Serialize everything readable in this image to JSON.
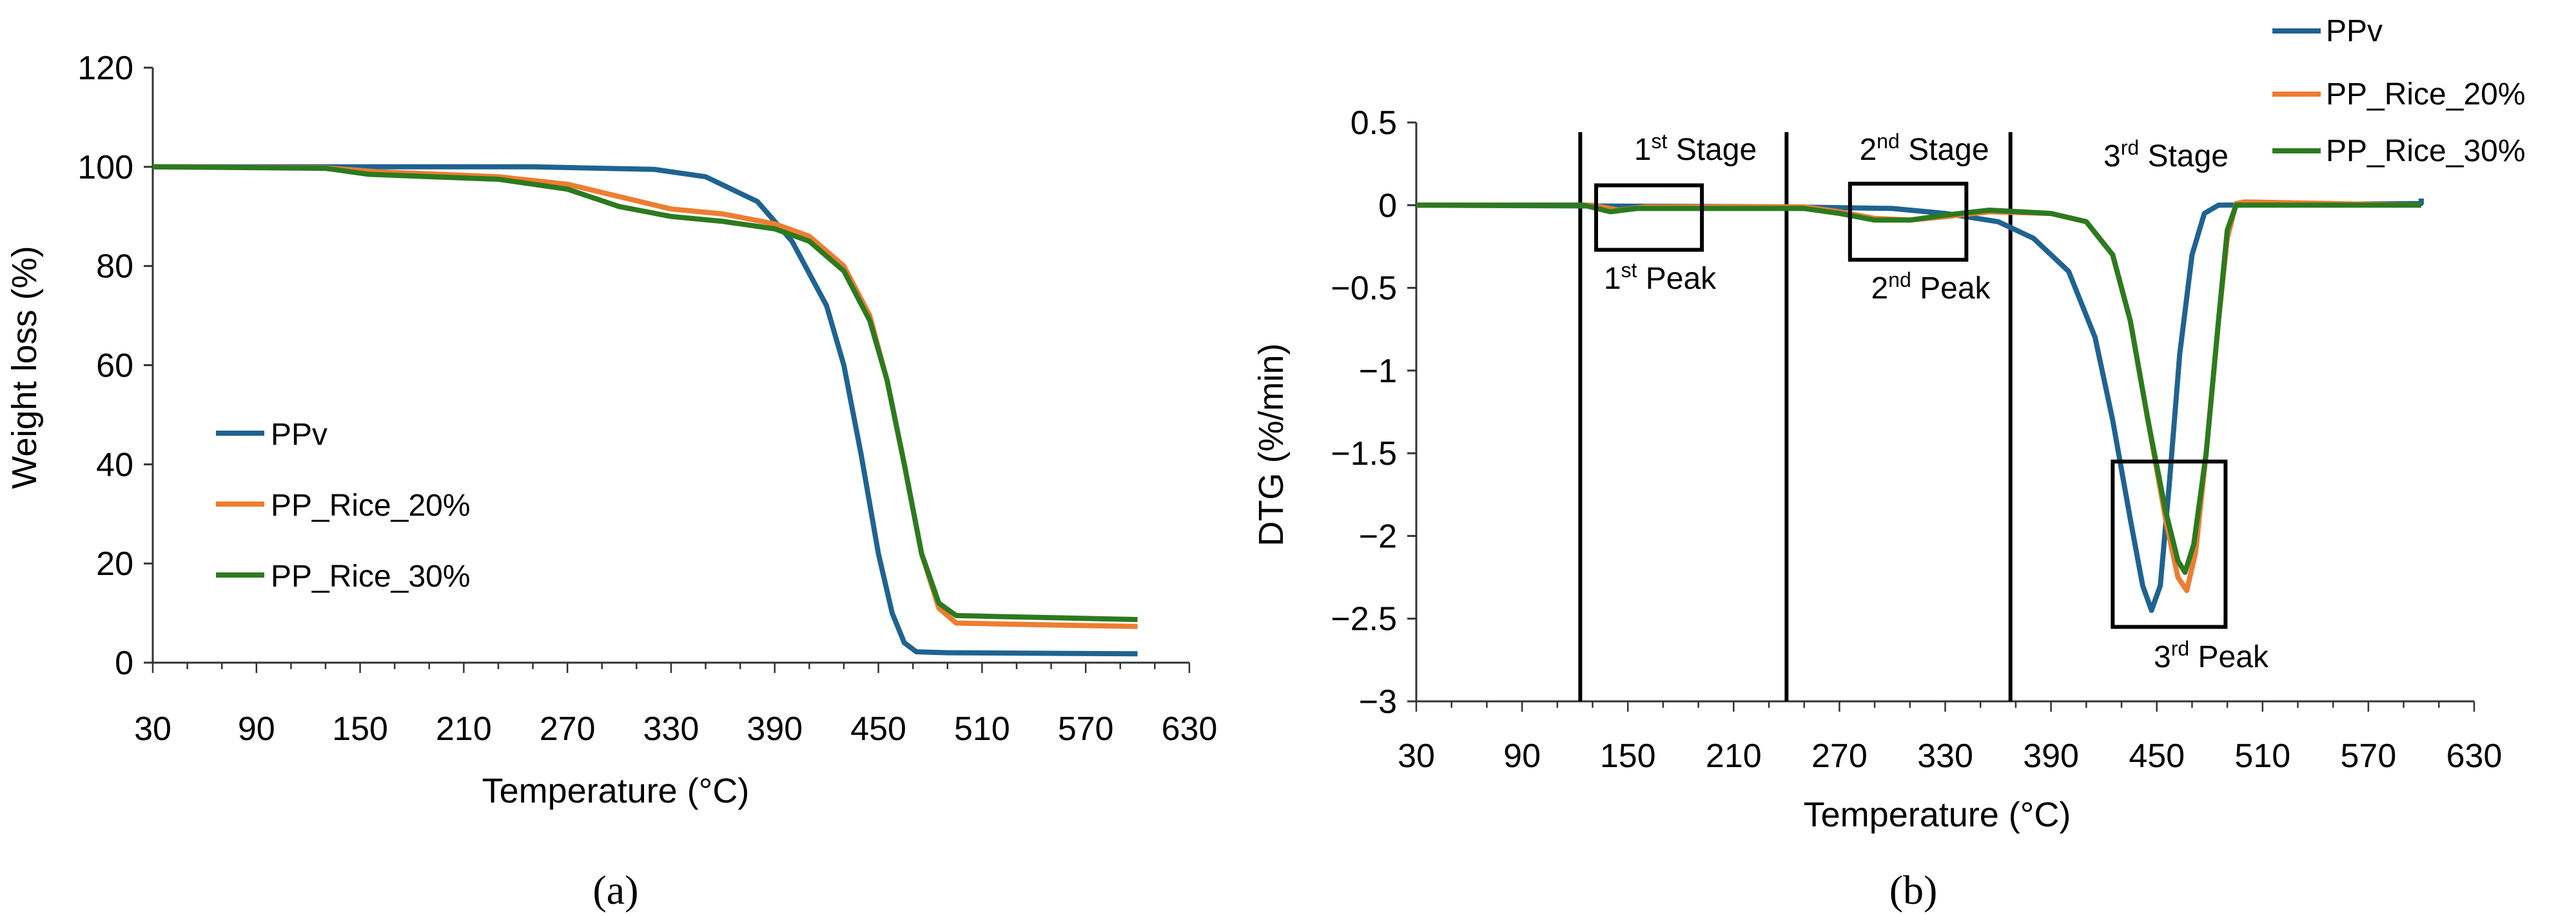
{
  "colors": {
    "ppv": "#1f6391",
    "pp_rice_20": "#ed7d31",
    "pp_rice_30": "#2c7a1f"
  },
  "chart_data": [
    {
      "type": "line",
      "panel_label": "(a)",
      "xlabel": "Temperature (°C)",
      "ylabel": "Weight loss (%)",
      "xlim": [
        30,
        630
      ],
      "ylim": [
        0,
        120
      ],
      "xticks": [
        "30",
        "90",
        "150",
        "210",
        "270",
        "330",
        "390",
        "450",
        "510",
        "570",
        "630"
      ],
      "yticks": [
        "0",
        "20",
        "40",
        "60",
        "80",
        "100",
        "120"
      ],
      "grid": false,
      "legend_placement": "left-middle",
      "series": [
        {
          "name": "PPv",
          "color": "#1f6391",
          "points": [
            [
              30,
              100
            ],
            [
              150,
              100
            ],
            [
              250,
              100
            ],
            [
              320,
              99.5
            ],
            [
              350,
              98
            ],
            [
              380,
              93
            ],
            [
              400,
              85
            ],
            [
              420,
              72
            ],
            [
              430,
              60
            ],
            [
              440,
              42
            ],
            [
              450,
              22
            ],
            [
              458,
              10
            ],
            [
              465,
              4
            ],
            [
              472,
              2.2
            ],
            [
              490,
              2
            ],
            [
              600,
              1.8
            ]
          ]
        },
        {
          "name": "PP_Rice_20%",
          "color": "#ed7d31",
          "points": [
            [
              30,
              100
            ],
            [
              130,
              99.8
            ],
            [
              160,
              99
            ],
            [
              230,
              98
            ],
            [
              270,
              96.5
            ],
            [
              300,
              94
            ],
            [
              330,
              91.5
            ],
            [
              360,
              90.5
            ],
            [
              390,
              88.5
            ],
            [
              410,
              86
            ],
            [
              430,
              80
            ],
            [
              445,
              70
            ],
            [
              455,
              57
            ],
            [
              465,
              40
            ],
            [
              475,
              22
            ],
            [
              485,
              11
            ],
            [
              495,
              8
            ],
            [
              520,
              7.8
            ],
            [
              600,
              7.3
            ]
          ]
        },
        {
          "name": "PP_Rice_30%",
          "color": "#2c7a1f",
          "points": [
            [
              30,
              100
            ],
            [
              130,
              99.7
            ],
            [
              155,
              98.5
            ],
            [
              230,
              97.5
            ],
            [
              270,
              95.5
            ],
            [
              300,
              92
            ],
            [
              330,
              90
            ],
            [
              360,
              89
            ],
            [
              390,
              87.5
            ],
            [
              410,
              85
            ],
            [
              430,
              79
            ],
            [
              445,
              69
            ],
            [
              455,
              57
            ],
            [
              465,
              40
            ],
            [
              475,
              22
            ],
            [
              485,
              12
            ],
            [
              495,
              9.5
            ],
            [
              520,
              9.3
            ],
            [
              600,
              8.7
            ]
          ]
        }
      ]
    },
    {
      "type": "line",
      "panel_label": "(b)",
      "xlabel": "Temperature (°C)",
      "ylabel": "DTG (%/min)",
      "xlim": [
        30,
        630
      ],
      "ylim": [
        -3,
        0.5
      ],
      "xticks": [
        "30",
        "90",
        "150",
        "210",
        "270",
        "330",
        "390",
        "450",
        "510",
        "570",
        "630"
      ],
      "yticks": [
        "0.5",
        "0",
        "-0.5",
        "-1",
        "-1.5",
        "-2",
        "-2.5",
        "-3"
      ],
      "grid": false,
      "legend_placement": "top-right",
      "series": [
        {
          "name": "PPv",
          "color": "#1f6391",
          "points": [
            [
              30,
              0
            ],
            [
              240,
              -0.01
            ],
            [
              300,
              -0.02
            ],
            [
              330,
              -0.05
            ],
            [
              360,
              -0.1
            ],
            [
              380,
              -0.2
            ],
            [
              400,
              -0.4
            ],
            [
              415,
              -0.8
            ],
            [
              425,
              -1.3
            ],
            [
              435,
              -1.9
            ],
            [
              442,
              -2.3
            ],
            [
              447,
              -2.45
            ],
            [
              452,
              -2.3
            ],
            [
              457,
              -1.7
            ],
            [
              463,
              -0.9
            ],
            [
              470,
              -0.3
            ],
            [
              477,
              -0.05
            ],
            [
              485,
              0
            ],
            [
              600,
              0.01
            ],
            [
              600,
              0.04
            ]
          ]
        },
        {
          "name": "PP_Rice_20%",
          "color": "#ed7d31",
          "points": [
            [
              30,
              0
            ],
            [
              130,
              0
            ],
            [
              145,
              -0.03
            ],
            [
              160,
              -0.01
            ],
            [
              250,
              -0.01
            ],
            [
              270,
              -0.04
            ],
            [
              290,
              -0.08
            ],
            [
              310,
              -0.09
            ],
            [
              330,
              -0.07
            ],
            [
              355,
              -0.04
            ],
            [
              390,
              -0.05
            ],
            [
              410,
              -0.1
            ],
            [
              425,
              -0.3
            ],
            [
              435,
              -0.7
            ],
            [
              445,
              -1.3
            ],
            [
              455,
              -1.9
            ],
            [
              462,
              -2.25
            ],
            [
              467,
              -2.33
            ],
            [
              472,
              -2.1
            ],
            [
              478,
              -1.5
            ],
            [
              485,
              -0.7
            ],
            [
              490,
              -0.2
            ],
            [
              495,
              0.01
            ],
            [
              500,
              0.02
            ],
            [
              600,
              0
            ]
          ]
        },
        {
          "name": "PP_Rice_30%",
          "color": "#2c7a1f",
          "points": [
            [
              30,
              0
            ],
            [
              125,
              0
            ],
            [
              140,
              -0.04
            ],
            [
              155,
              -0.02
            ],
            [
              250,
              -0.02
            ],
            [
              270,
              -0.05
            ],
            [
              290,
              -0.09
            ],
            [
              310,
              -0.09
            ],
            [
              330,
              -0.06
            ],
            [
              355,
              -0.03
            ],
            [
              390,
              -0.05
            ],
            [
              410,
              -0.1
            ],
            [
              425,
              -0.3
            ],
            [
              435,
              -0.7
            ],
            [
              445,
              -1.3
            ],
            [
              455,
              -1.85
            ],
            [
              462,
              -2.15
            ],
            [
              466,
              -2.22
            ],
            [
              471,
              -2.05
            ],
            [
              478,
              -1.5
            ],
            [
              485,
              -0.7
            ],
            [
              490,
              -0.15
            ],
            [
              495,
              0
            ],
            [
              600,
              0
            ]
          ]
        }
      ],
      "stage_lines": [
        123,
        240,
        367
      ],
      "annotations": {
        "stage1": "1st Stage",
        "stage2": "2nd Stage",
        "stage3": "3rd Stage",
        "peak1": "1st Peak",
        "peak2": "2nd Peak",
        "peak3": "3rd Peak"
      },
      "peak_boxes": [
        {
          "x": [
            132,
            192
          ],
          "y": [
            0.12,
            -0.27
          ]
        },
        {
          "x": [
            276,
            342
          ],
          "y": [
            0.13,
            -0.33
          ]
        },
        {
          "x": [
            425,
            489
          ],
          "y": [
            -1.55,
            -2.55
          ]
        }
      ]
    }
  ]
}
